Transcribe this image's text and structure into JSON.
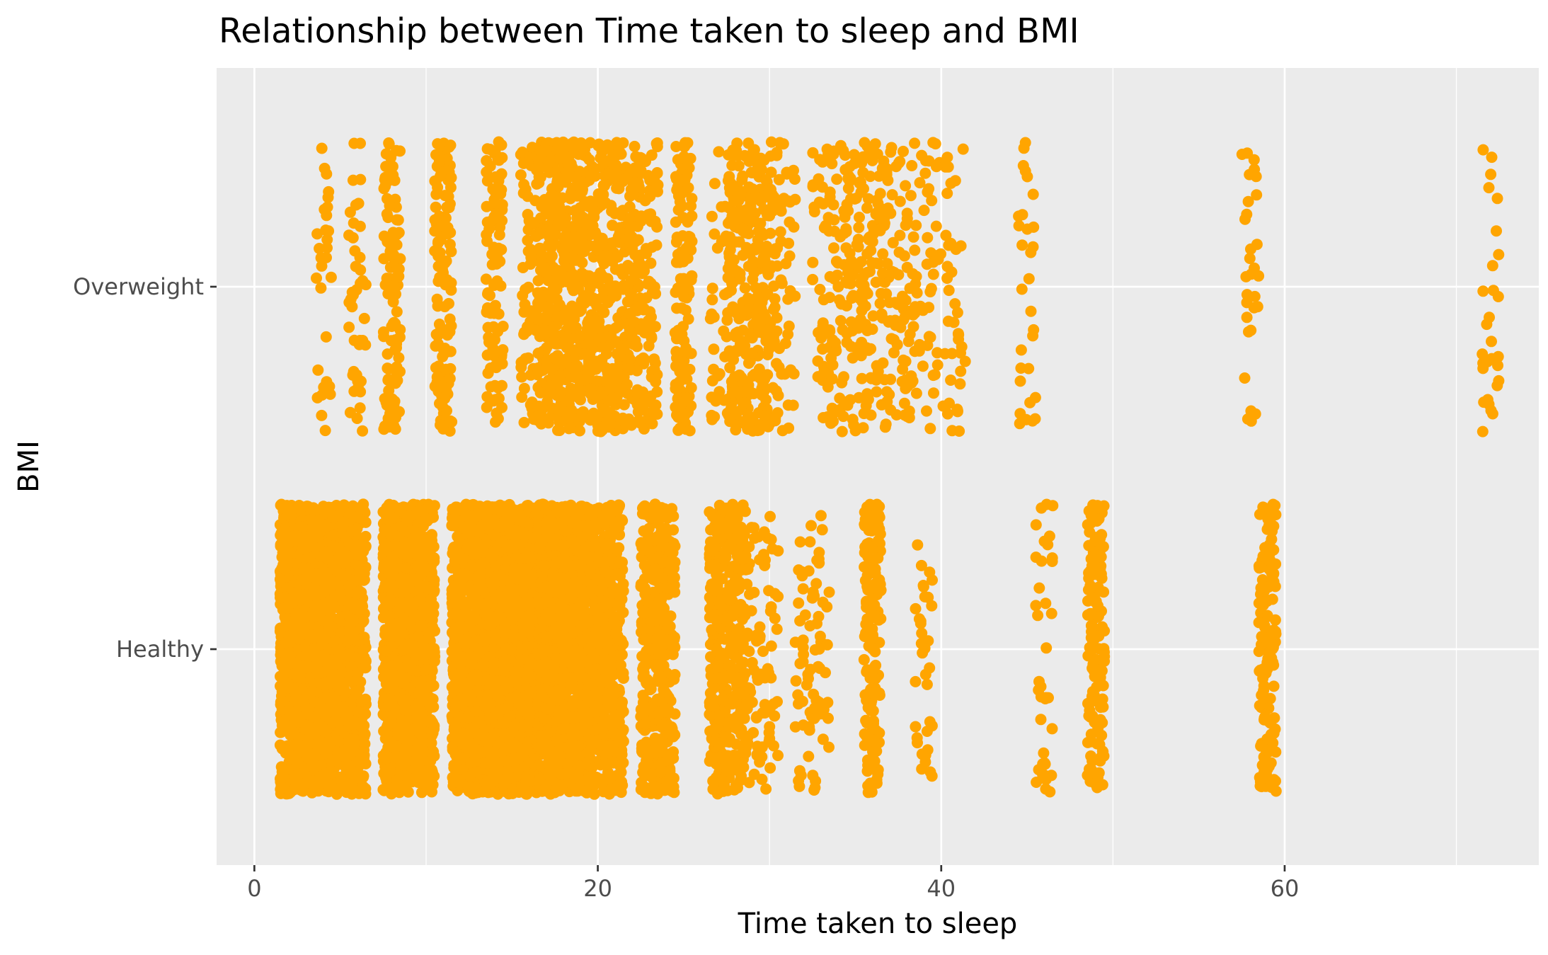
{
  "chart_data": {
    "type": "scatter",
    "title": "Relationship between Time taken to sleep and BMI",
    "xlabel": "Time taken to sleep",
    "ylabel": "BMI",
    "xlim": [
      -2.2,
      74.8
    ],
    "x_ticks": [
      0,
      20,
      40,
      60
    ],
    "categories": [
      "Healthy",
      "Overweight"
    ],
    "jitter": 0.4,
    "grid": true,
    "legend": "none",
    "point_color": "#FFA500",
    "panel_background": "#EBEBEB",
    "series": [
      {
        "category": "Overweight",
        "x_groups": [
          {
            "x": 4,
            "count": 30
          },
          {
            "x": 6,
            "count": 45
          },
          {
            "x": 8,
            "count": 100
          },
          {
            "x": 11,
            "count": 130
          },
          {
            "x": 14,
            "count": 100
          },
          {
            "x": 16,
            "count": 70
          },
          {
            "x": 17,
            "count": 160
          },
          {
            "x": 18,
            "count": 180
          },
          {
            "x": 19,
            "count": 150
          },
          {
            "x": 20,
            "count": 140
          },
          {
            "x": 21,
            "count": 120
          },
          {
            "x": 22,
            "count": 110
          },
          {
            "x": 23,
            "count": 90
          },
          {
            "x": 25,
            "count": 130
          },
          {
            "x": 27,
            "count": 30
          },
          {
            "x": 28,
            "count": 120
          },
          {
            "x": 29,
            "count": 110
          },
          {
            "x": 30,
            "count": 100
          },
          {
            "x": 31,
            "count": 40
          },
          {
            "x": 33,
            "count": 40
          },
          {
            "x": 34,
            "count": 60
          },
          {
            "x": 35,
            "count": 70
          },
          {
            "x": 36,
            "count": 60
          },
          {
            "x": 37,
            "count": 50
          },
          {
            "x": 38,
            "count": 50
          },
          {
            "x": 39,
            "count": 30
          },
          {
            "x": 40,
            "count": 30
          },
          {
            "x": 41,
            "count": 25
          },
          {
            "x": 45,
            "count": 30
          },
          {
            "x": 58,
            "count": 30
          },
          {
            "x": 72,
            "count": 30
          }
        ]
      },
      {
        "category": "Healthy",
        "x_groups": [
          {
            "x": 2,
            "count": 400
          },
          {
            "x": 3,
            "count": 400
          },
          {
            "x": 4,
            "count": 350
          },
          {
            "x": 5,
            "count": 350
          },
          {
            "x": 6,
            "count": 300
          },
          {
            "x": 8,
            "count": 400
          },
          {
            "x": 9,
            "count": 400
          },
          {
            "x": 10,
            "count": 300
          },
          {
            "x": 12,
            "count": 400
          },
          {
            "x": 13,
            "count": 400
          },
          {
            "x": 14,
            "count": 450
          },
          {
            "x": 15,
            "count": 450
          },
          {
            "x": 16,
            "count": 450
          },
          {
            "x": 17,
            "count": 400
          },
          {
            "x": 18,
            "count": 400
          },
          {
            "x": 19,
            "count": 380
          },
          {
            "x": 20,
            "count": 300
          },
          {
            "x": 21,
            "count": 250
          },
          {
            "x": 23,
            "count": 200
          },
          {
            "x": 24,
            "count": 200
          },
          {
            "x": 27,
            "count": 200
          },
          {
            "x": 28,
            "count": 180
          },
          {
            "x": 29,
            "count": 60
          },
          {
            "x": 30,
            "count": 40
          },
          {
            "x": 32,
            "count": 40
          },
          {
            "x": 33,
            "count": 40
          },
          {
            "x": 36,
            "count": 150
          },
          {
            "x": 39,
            "count": 35
          },
          {
            "x": 46,
            "count": 40
          },
          {
            "x": 49,
            "count": 150
          },
          {
            "x": 59,
            "count": 150
          }
        ]
      }
    ]
  }
}
